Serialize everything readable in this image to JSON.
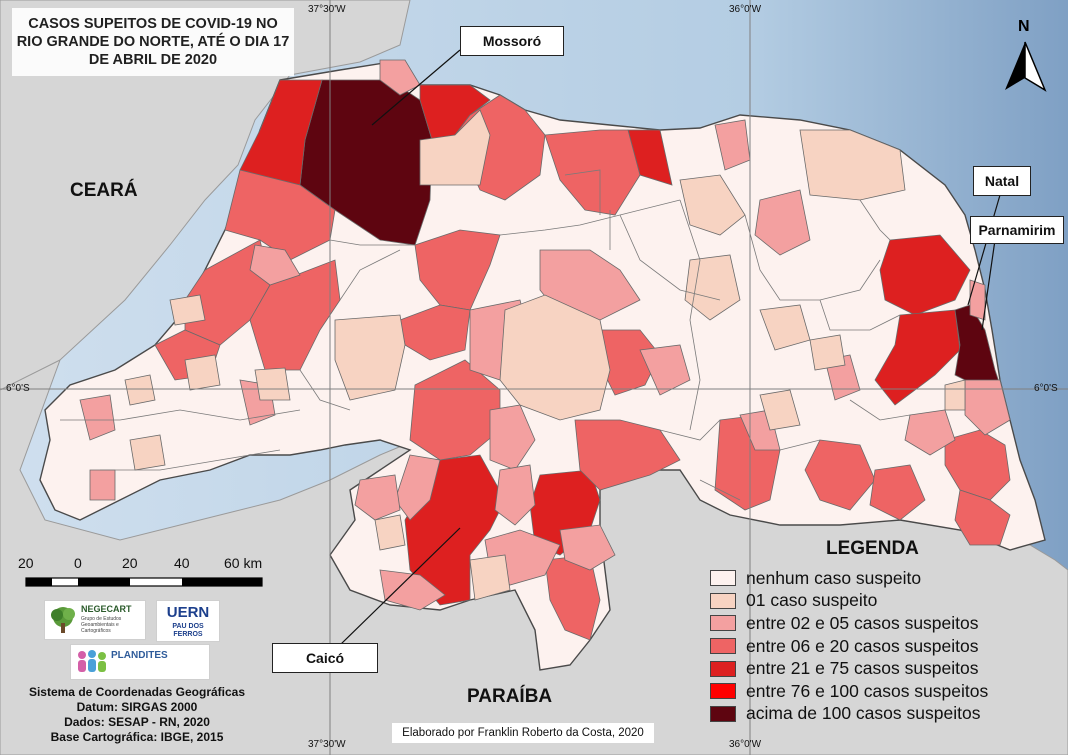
{
  "title": "CASOS SUPEITOS DE COVID-19 NO\nRIO GRANDE DO NORTE, ATÉ O DIA 17\nDE ABRIL DE 2020",
  "callouts": {
    "mossoro": "Mossoró",
    "natal": "Natal",
    "parnamirim": "Parnamirim",
    "caico": "Caicó"
  },
  "regions": {
    "ceara": "CEARÁ",
    "paraiba": "PARAÍBA"
  },
  "coordinates": {
    "top_left": "37°30'W",
    "top_right": "36°0'W",
    "bottom_left": "37°30'W",
    "bottom_right": "36°0'W",
    "left": "6°0'S",
    "right": "6°0'S"
  },
  "north_arrow": {
    "label": "N",
    "icon": "north-arrow-icon"
  },
  "scale": {
    "labels": [
      "20",
      "0",
      "20",
      "40",
      "60 km"
    ]
  },
  "legend": {
    "title": "LEGENDA",
    "items": [
      {
        "label": "nenhum caso suspeito",
        "color": "#fdf2ef"
      },
      {
        "label": "01 caso suspeito",
        "color": "#f7d3c2"
      },
      {
        "label": "entre 02 e 05 casos suspeitos",
        "color": "#f3a0a0"
      },
      {
        "label": "entre 06 e 20 casos suspeitos",
        "color": "#ee6464"
      },
      {
        "label": "entre 21 e 75 casos suspeitos",
        "color": "#dd2020"
      },
      {
        "label": "entre 76 e 100 casos suspeitos",
        "color": "#ff0000"
      },
      {
        "label": "acima de 100 casos suspeitos",
        "color": "#5e0510"
      }
    ]
  },
  "logos": {
    "negecart": {
      "name": "NEGECART",
      "subtitle": "Grupo de Estudos Geoambientais e Cartográficos",
      "icon": "tree-logo-icon"
    },
    "uern": {
      "name": "UERN",
      "subtitle": "PAU DOS FERROS"
    },
    "plandites": {
      "name": "PLANDITES",
      "icon": "people-logo-icon"
    }
  },
  "credits": {
    "line1": "Sistema de Coordenadas Geográficas",
    "line2": "Datum: SIRGAS 2000",
    "line3": "Dados: SESAP - RN, 2020",
    "line4": "Base Cartográfica: IBGE, 2015"
  },
  "author": "Elaborado por Franklin Roberto da Costa, 2020",
  "colors": {
    "ocean": "#aec6dd",
    "land_neighbor": "#d5d5d5",
    "grid": "#7a7a7a"
  }
}
